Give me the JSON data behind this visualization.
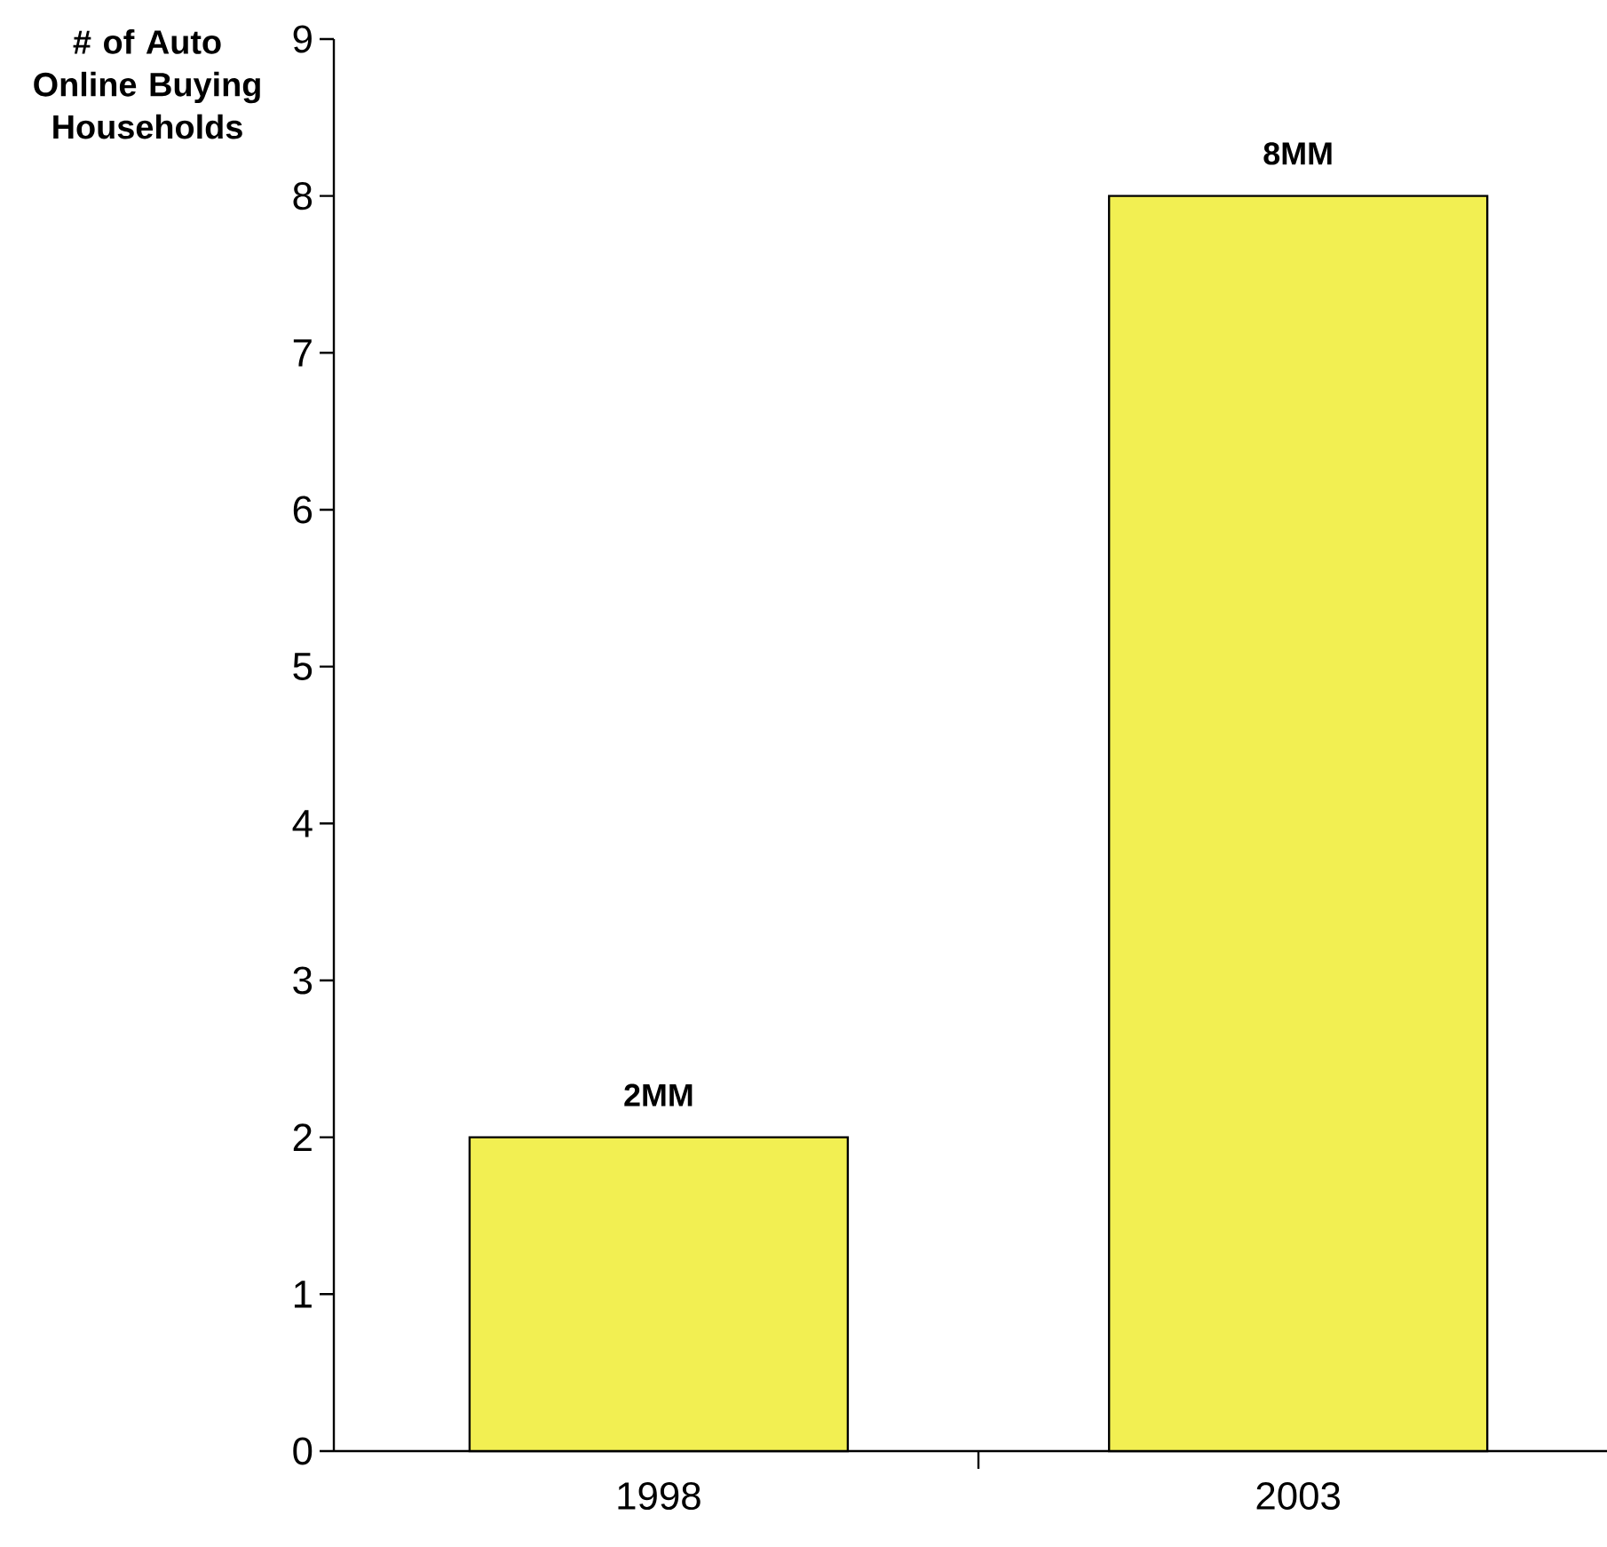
{
  "chart_data": {
    "type": "bar",
    "ylabel": "# of Auto Online Buying Households",
    "categories": [
      "1998",
      "2003"
    ],
    "values": [
      2,
      8
    ],
    "value_labels": [
      "2MM",
      "8MM"
    ],
    "color": "#f2ef52",
    "ylim": [
      0,
      9
    ],
    "yticks": [
      0,
      1,
      2,
      3,
      4,
      5,
      6,
      7,
      8,
      9
    ]
  }
}
